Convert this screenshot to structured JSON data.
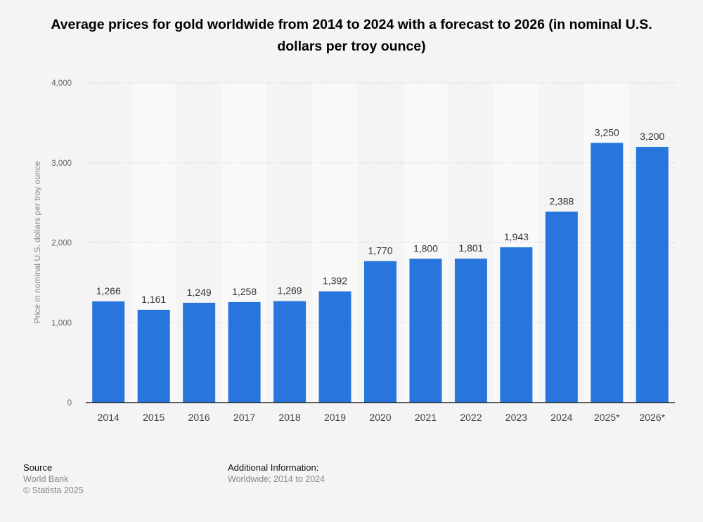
{
  "chart_data": {
    "type": "bar",
    "title": "Average prices for gold worldwide from 2014 to 2024 with a forecast to 2026 (in nominal U.S. dollars per troy ounce)",
    "xlabel": "",
    "ylabel": "Price in nominal U.S. dollars per troy ounce",
    "categories": [
      "2014",
      "2015",
      "2016",
      "2017",
      "2018",
      "2019",
      "2020",
      "2021",
      "2022",
      "2023",
      "2024",
      "2025*",
      "2026*"
    ],
    "values": [
      1266,
      1161,
      1249,
      1258,
      1269,
      1392,
      1770,
      1800,
      1801,
      1943,
      2388,
      3250,
      3200
    ],
    "value_labels": [
      "1,266",
      "1,161",
      "1,249",
      "1,258",
      "1,269",
      "1,392",
      "1,770",
      "1,800",
      "1,801",
      "1,943",
      "2,388",
      "3,250",
      "3,200"
    ],
    "ylim": [
      0,
      4000
    ],
    "yticks": [
      0,
      1000,
      2000,
      3000,
      4000
    ],
    "ytick_labels": [
      "0",
      "1,000",
      "2,000",
      "3,000",
      "4,000"
    ],
    "grid": true,
    "bar_color": "#2876dd"
  },
  "footer": {
    "source_heading": "Source",
    "source": "World Bank",
    "copyright": "© Statista 2025",
    "additional_heading": "Additional Information:",
    "additional": "Worldwide; 2014 to 2024"
  }
}
